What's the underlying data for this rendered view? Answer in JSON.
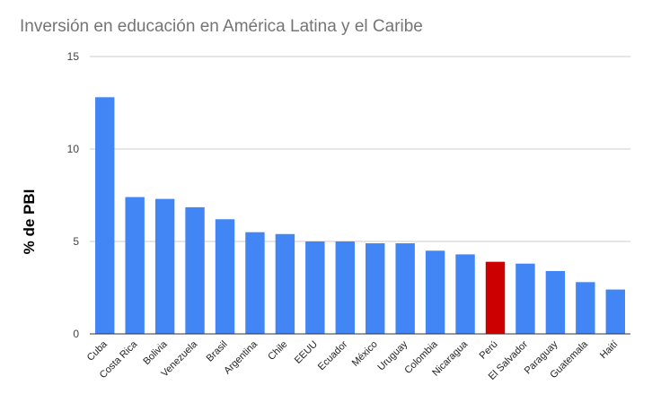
{
  "chart_data": {
    "type": "bar",
    "title": "Inversión en educación en América Latina y el Caribe",
    "xlabel": "",
    "ylabel": "% de PBI",
    "ylim": [
      0,
      15
    ],
    "yticks": [
      "0",
      "5",
      "10",
      "15"
    ],
    "grid": true,
    "legend": "none",
    "categories": [
      "Cuba",
      "Costa Rica",
      "Bolivia",
      "Venezuela",
      "Brasil",
      "Argentina",
      "Chile",
      "EEUU",
      "Ecuador",
      "México",
      "Uruguay",
      "Colombia",
      "Nicaragua",
      "Perú",
      "El Salvador",
      "Paraguay",
      "Guatemala",
      "Haití"
    ],
    "values": [
      12.8,
      7.4,
      7.3,
      6.85,
      6.2,
      5.5,
      5.4,
      5.0,
      5.0,
      4.9,
      4.9,
      4.5,
      4.3,
      3.9,
      3.8,
      3.4,
      2.8,
      2.4
    ],
    "highlight": "Perú",
    "colors": {
      "bar": "#4285f4",
      "highlight": "#cc0000",
      "grid": "#cccccc",
      "axis": "#333333",
      "title": "#757575"
    }
  }
}
